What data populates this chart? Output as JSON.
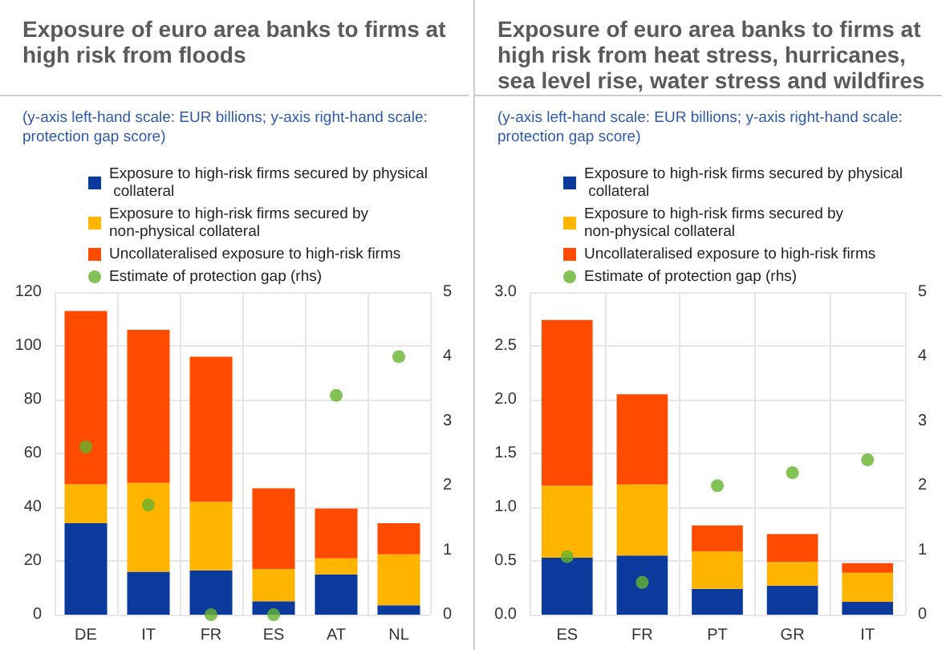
{
  "chart_data": [
    {
      "type": "bar",
      "title": "Exposure of euro area banks to firms at high risk from floods",
      "subtitle": "(y-axis left-hand scale: EUR billions; y-axis right-hand scale: protection gap score)",
      "categories": [
        "DE",
        "IT",
        "FR",
        "ES",
        "AT",
        "NL"
      ],
      "stacked": true,
      "legend": "top",
      "grid": true,
      "marker": "circle",
      "ylim": [
        0,
        120
      ],
      "yticks": [
        0,
        20,
        40,
        60,
        80,
        100,
        120
      ],
      "y2lim": [
        0,
        5
      ],
      "y2ticks": [
        0,
        1,
        2,
        3,
        4,
        5
      ],
      "series": [
        {
          "name": "Exposure to high-risk firms secured by physical collateral",
          "color": "#0a3a9c",
          "values": [
            34,
            16,
            16.5,
            5,
            15,
            3.5
          ]
        },
        {
          "name": "Exposure to high-risk firms secured by non-physical collateral",
          "color": "#ffb400",
          "values": [
            14.5,
            33,
            25.5,
            12,
            6,
            19
          ]
        },
        {
          "name": "Uncollateralised exposure to high-risk firms",
          "color": "#ff4b00",
          "values": [
            64.5,
            57,
            54,
            30,
            18.5,
            11.5
          ]
        },
        {
          "name": "Estimate of protection gap (rhs)",
          "type": "scatter",
          "axis": "y2",
          "color": "#65b32e",
          "x": [
            "DE",
            "IT",
            "FR",
            "ES",
            "AT",
            "NL"
          ],
          "values": [
            2.6,
            1.7,
            0,
            0,
            3.4,
            4.0
          ]
        }
      ]
    },
    {
      "type": "bar",
      "title": "Exposure of euro area banks to firms at high risk from heat stress, hurricanes, sea level rise, water stress and wildfires",
      "subtitle": "(y-axis left-hand scale: EUR billions; y-axis right-hand scale: protection gap score)",
      "categories": [
        "ES",
        "FR",
        "PT",
        "GR",
        "IT"
      ],
      "stacked": true,
      "legend": "top",
      "grid": true,
      "marker": "circle",
      "ylim": [
        0,
        3
      ],
      "yticks": [
        {
          "value": 0,
          "label": "0.0"
        },
        0.5,
        {
          "value": 1,
          "label": "1.0"
        },
        1.5,
        {
          "value": 2,
          "label": "2.0"
        },
        2.5,
        {
          "value": 3,
          "label": "3.0"
        }
      ],
      "y2lim": [
        0,
        5
      ],
      "y2ticks": [
        0,
        1,
        2,
        3,
        4,
        5
      ],
      "series": [
        {
          "name": "Exposure to high-risk firms secured by physical collateral",
          "color": "#0a3a9c",
          "values": [
            0.53,
            0.55,
            0.24,
            0.27,
            0.12
          ]
        },
        {
          "name": "Exposure to high-risk firms secured by non-physical collateral",
          "color": "#ffb400",
          "values": [
            0.67,
            0.66,
            0.35,
            0.22,
            0.27
          ]
        },
        {
          "name": "Uncollateralised exposure to high-risk firms",
          "color": "#ff4b00",
          "values": [
            1.54,
            0.84,
            0.24,
            0.26,
            0.09
          ]
        },
        {
          "name": "Estimate of protection gap (rhs)",
          "type": "scatter",
          "axis": "y2",
          "color": "#65b32e",
          "x": [
            "ES",
            "FR",
            "PT",
            "GR",
            "IT"
          ],
          "values": [
            0.9,
            0.5,
            2.0,
            2.2,
            2.4
          ]
        }
      ]
    }
  ]
}
